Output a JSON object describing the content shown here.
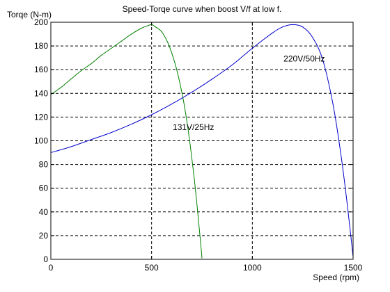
{
  "chart_data": {
    "type": "line",
    "title": "Speed-Torqe curve when boost V/f  at low f.",
    "xlabel": "Speed (rpm)",
    "ylabel": "Torqe (N-m)",
    "xlim": [
      0,
      1500
    ],
    "ylim": [
      0,
      200
    ],
    "xticks": [
      0,
      500,
      1000,
      1500
    ],
    "yticks": [
      0,
      20,
      40,
      60,
      80,
      100,
      120,
      140,
      160,
      180,
      200
    ],
    "grid": true,
    "series": [
      {
        "name": "131V/25Hz",
        "color": "#008000",
        "x": [
          0,
          50,
          100,
          150,
          200,
          250,
          300,
          350,
          400,
          450,
          480,
          500,
          520,
          550,
          580,
          600,
          620,
          640,
          660,
          680,
          700,
          720,
          740,
          750
        ],
        "y": [
          139,
          145,
          152,
          159,
          165,
          172,
          178,
          184,
          190,
          195,
          197,
          198,
          196,
          192,
          183,
          174,
          163,
          149,
          132,
          111,
          85,
          55,
          20,
          1
        ]
      },
      {
        "name": "220V/50Hz",
        "color": "#0000cc",
        "x": [
          0,
          100,
          200,
          300,
          400,
          500,
          600,
          700,
          800,
          900,
          1000,
          1100,
          1150,
          1200,
          1250,
          1300,
          1350,
          1400,
          1440,
          1470,
          1490,
          1500
        ],
        "y": [
          90,
          95,
          101,
          107,
          114,
          122,
          131,
          141,
          152,
          164,
          178,
          191,
          196,
          198,
          196,
          187,
          168,
          131,
          88,
          48,
          18,
          2
        ]
      }
    ],
    "annotations": [
      {
        "text": "220V/50Hz",
        "x": 1155,
        "y": 167
      },
      {
        "text": "131V/25Hz",
        "x": 605,
        "y": 109
      }
    ]
  }
}
